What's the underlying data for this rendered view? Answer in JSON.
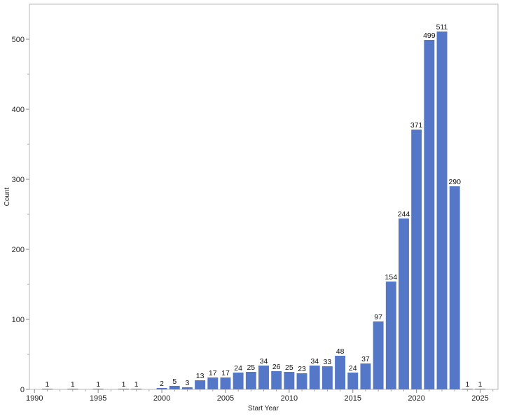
{
  "chart_data": {
    "type": "bar",
    "xlabel": "Start Year",
    "ylabel": "Count",
    "xlim": [
      1989.6,
      2026.4
    ],
    "ylim": [
      0,
      550
    ],
    "x_ticks": [
      1990,
      1995,
      2000,
      2005,
      2010,
      2015,
      2020,
      2025
    ],
    "y_ticks": [
      0,
      100,
      200,
      300,
      400,
      500
    ],
    "grid": false,
    "bar_color": "#5577C8",
    "x": [
      1991,
      1993,
      1995,
      1997,
      1998,
      2000,
      2001,
      2002,
      2003,
      2004,
      2005,
      2006,
      2007,
      2008,
      2009,
      2010,
      2011,
      2012,
      2013,
      2014,
      2015,
      2016,
      2017,
      2018,
      2019,
      2020,
      2021,
      2022,
      2023,
      2024,
      2025
    ],
    "values": [
      1,
      1,
      1,
      1,
      1,
      2,
      5,
      3,
      13,
      17,
      17,
      24,
      25,
      34,
      26,
      25,
      23,
      34,
      33,
      48,
      24,
      37,
      97,
      154,
      244,
      371,
      499,
      511,
      290,
      1,
      1
    ]
  }
}
